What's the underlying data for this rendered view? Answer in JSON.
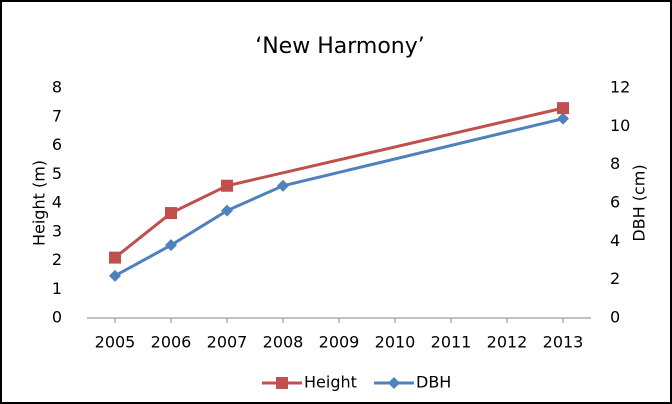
{
  "chart_data": {
    "type": "line",
    "title": "‘New Harmony’",
    "y_label": "Height (m)",
    "y2_label": "DBH (cm)",
    "xlim": [
      2004.5,
      2013.5
    ],
    "xticks": [
      2005,
      2006,
      2007,
      2008,
      2009,
      2010,
      2011,
      2012,
      2013
    ],
    "ylim": [
      0,
      8
    ],
    "yticks": [
      0,
      1,
      2,
      3,
      4,
      5,
      6,
      7,
      8
    ],
    "y2lim": [
      0,
      12
    ],
    "y2ticks": [
      0,
      2,
      4,
      6,
      8,
      10,
      12
    ],
    "legend": "bottom",
    "series": [
      {
        "name": "Height",
        "color": "#c0504d",
        "marker": "square",
        "x": [
          2005,
          2006,
          2007,
          2013
        ],
        "values": [
          2.1,
          3.65,
          4.6,
          7.3
        ]
      },
      {
        "name": "DBH",
        "color": "#4f81bd",
        "marker": "diamond",
        "axis": "y2",
        "x": [
          2005,
          2006,
          2007,
          2008,
          2013
        ],
        "values": [
          2.2,
          3.8,
          5.6,
          6.9,
          10.4
        ]
      }
    ]
  }
}
